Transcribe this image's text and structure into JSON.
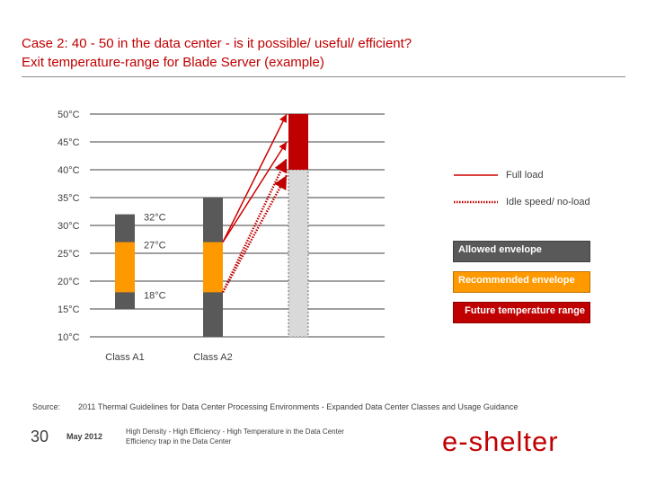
{
  "header": {
    "title": "Case 2: 40 - 50 in the data center - is it possible/ useful/ efficient?",
    "subtitle": "Exit temperature-range for Blade Server (example)"
  },
  "chart_data": {
    "type": "bar",
    "y_unit": "°C",
    "ylim": [
      10,
      50
    ],
    "ticks": [
      {
        "value": 50,
        "label": "50°C"
      },
      {
        "value": 45,
        "label": "45°C"
      },
      {
        "value": 40,
        "label": "40°C"
      },
      {
        "value": 35,
        "label": "35°C"
      },
      {
        "value": 30,
        "label": "30°C"
      },
      {
        "value": 25,
        "label": "25°C"
      },
      {
        "value": 20,
        "label": "20°C"
      },
      {
        "value": 15,
        "label": "15°C"
      },
      {
        "value": 10,
        "label": "10°C"
      }
    ],
    "grid": true,
    "bars": [
      {
        "category": "Class A1",
        "allowed": [
          15,
          32
        ],
        "recommended": [
          18,
          27
        ]
      },
      {
        "category": "Class A2",
        "allowed": [
          10,
          35
        ],
        "recommended": [
          18,
          27
        ]
      },
      {
        "category": "",
        "allowed": [
          10,
          40
        ],
        "future": [
          40,
          50
        ]
      }
    ],
    "annotations": [
      {
        "value": 32,
        "label": "32°C"
      },
      {
        "value": 27,
        "label": "27°C"
      },
      {
        "value": 18,
        "label": "18°C"
      }
    ],
    "arrows": [
      {
        "kind": "full-load",
        "from": 27,
        "to": 50
      },
      {
        "kind": "full-load",
        "from": 27,
        "to": 45
      },
      {
        "kind": "idle",
        "from": 18,
        "to": 42
      },
      {
        "kind": "idle",
        "from": 18,
        "to": 39
      }
    ],
    "legend": {
      "full_load": "Full load",
      "idle": "Idle speed/ no-load",
      "allowed": "Allowed envelope",
      "recommended": "Recommended envelope",
      "future": "Future temperature range"
    },
    "colors": {
      "allowed": "#595959",
      "recommended": "#ff9900",
      "future": "#c00000",
      "extension": "#d9d9d9",
      "arrow_full": "#d00000",
      "arrow_idle": "#c00000"
    }
  },
  "footer": {
    "source_label": "Source:",
    "source_text": "2011 Thermal Guidelines for Data Center Processing Environments - Expanded Data Center Classes and Usage Guidance",
    "page_number": "30",
    "date": "May 2012",
    "line1": "High Density - High Efficiency - High Temperature in the Data Center",
    "line2": "Efficiency trap in the Data Center",
    "logo_text": "e-shelter"
  }
}
